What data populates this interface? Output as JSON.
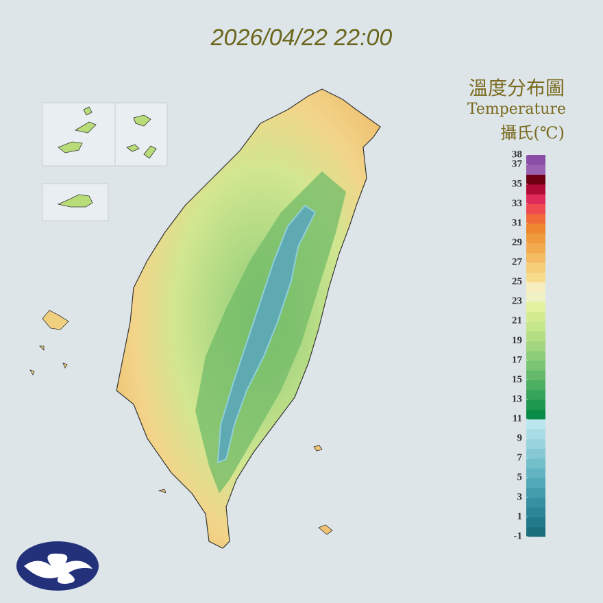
{
  "header": {
    "datetime": "2026/04/22 22:00"
  },
  "legend": {
    "title": "溫度分布圖",
    "subtitle": "Temperature",
    "unit": "攝氏(℃)",
    "lim": [
      -1,
      38
    ],
    "ticks": [
      -1,
      1,
      3,
      5,
      7,
      9,
      11,
      13,
      15,
      17,
      19,
      21,
      23,
      25,
      27,
      29,
      31,
      33,
      35,
      37,
      38
    ],
    "colors": [
      "#1b6f7d",
      "#21798a",
      "#2a8596",
      "#3591a1",
      "#429dac",
      "#51a9b8",
      "#62b4c3",
      "#74bfcc",
      "#86c9d5",
      "#98d3de",
      "#a9dde6",
      "#bbe6ed",
      "#0a8c47",
      "#1f9850",
      "#36a45a",
      "#4daf62",
      "#64ba6a",
      "#7ac472",
      "#8ecd78",
      "#a2d67e",
      "#b4de84",
      "#c6e68a",
      "#d4ec90",
      "#e2f29e",
      "#eef2c4",
      "#f6eec0",
      "#f7dc8e",
      "#f6cd78",
      "#f4bc62",
      "#f2aa4e",
      "#f09a3e",
      "#ed8830",
      "#f06a3a",
      "#ee4a50",
      "#e02a5a",
      "#b00a36",
      "#6e0010",
      "#9a60b0",
      "#8a4ea8"
    ]
  }
}
